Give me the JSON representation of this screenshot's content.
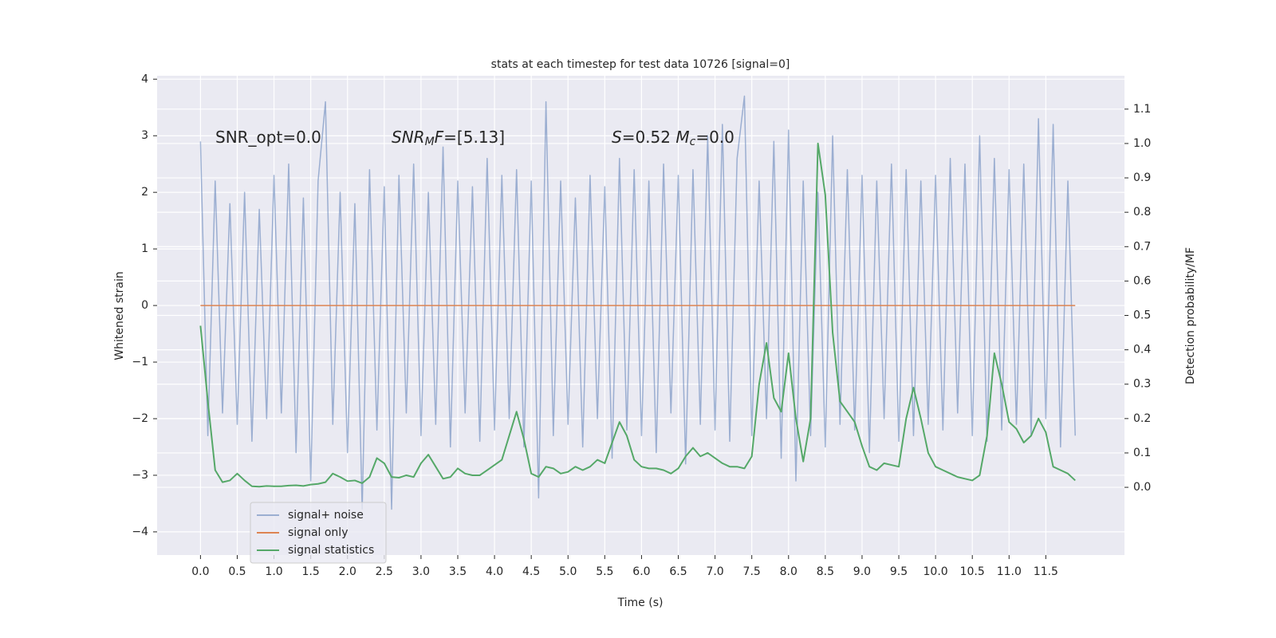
{
  "chart_data": {
    "type": "line",
    "title": "stats at each timestep for test data 10726 [signal=0]",
    "xlabel": "Time (s)",
    "ylabel": "Whitened strain",
    "y2label": "Detection probability/MF",
    "annotations": [
      [
        {
          "text": "SNR_opt=0.0"
        }
      ],
      [
        {
          "text": "SNR",
          "italic": true
        },
        {
          "text": "M",
          "italic": true,
          "sub": true
        },
        {
          "text": "F",
          "italic": true
        },
        {
          "text": "=[5.13]"
        }
      ],
      [
        {
          "text": "S",
          "italic": true
        },
        {
          "text": "=0.52   "
        },
        {
          "text": "M",
          "italic": true
        },
        {
          "text": "c",
          "italic": true,
          "sub": true
        },
        {
          "text": "=0.0"
        }
      ]
    ],
    "xlim": [
      -0.59,
      12.57
    ],
    "ylim": [
      -4.41,
      4.06
    ],
    "y2lim": [
      -0.197,
      1.197
    ],
    "xticks": [
      {
        "value": 0,
        "label": "0.0"
      },
      0.5,
      {
        "value": 1,
        "label": "1.0"
      },
      1.5,
      {
        "value": 2,
        "label": "2.0"
      },
      2.5,
      {
        "value": 3,
        "label": "3.0"
      },
      3.5,
      {
        "value": 4,
        "label": "4.0"
      },
      4.5,
      {
        "value": 5,
        "label": "5.0"
      },
      5.5,
      {
        "value": 6,
        "label": "6.0"
      },
      6.5,
      {
        "value": 7,
        "label": "7.0"
      },
      7.5,
      {
        "value": 8,
        "label": "8.0"
      },
      8.5,
      {
        "value": 9,
        "label": "9.0"
      },
      9.5,
      {
        "value": 10,
        "label": "10.0"
      },
      10.5,
      {
        "value": 11,
        "label": "11.0"
      },
      11.5
    ],
    "yticks": [
      {
        "value": -4,
        "label": "−4"
      },
      {
        "value": -3,
        "label": "−3"
      },
      {
        "value": -2,
        "label": "−2"
      },
      {
        "value": -1,
        "label": "−1"
      },
      0,
      1,
      2,
      3,
      4
    ],
    "y2ticks": [
      {
        "value": 0,
        "label": "0.0"
      },
      0.1,
      0.2,
      0.3,
      0.4,
      0.5,
      0.6,
      0.7,
      0.8,
      0.9,
      {
        "value": 1,
        "label": "1.0"
      },
      1.1
    ],
    "grid": true,
    "legend": "lower left",
    "x": [
      0.0,
      0.1,
      0.2,
      0.3,
      0.4,
      0.5,
      0.6,
      0.7,
      0.8,
      0.9,
      1.0,
      1.1,
      1.2,
      1.3,
      1.4,
      1.5,
      1.6,
      1.7,
      1.8,
      1.9,
      2.0,
      2.1,
      2.2,
      2.3,
      2.4,
      2.5,
      2.6,
      2.7,
      2.8,
      2.9,
      3.0,
      3.1,
      3.2,
      3.3,
      3.4,
      3.5,
      3.6,
      3.7,
      3.8,
      3.9,
      4.0,
      4.1,
      4.2,
      4.3,
      4.4,
      4.5,
      4.6,
      4.7,
      4.8,
      4.9,
      5.0,
      5.1,
      5.2,
      5.3,
      5.4,
      5.5,
      5.6,
      5.7,
      5.8,
      5.9,
      6.0,
      6.1,
      6.2,
      6.3,
      6.4,
      6.5,
      6.6,
      6.7,
      6.8,
      6.9,
      7.0,
      7.1,
      7.2,
      7.3,
      7.4,
      7.5,
      7.6,
      7.7,
      7.8,
      7.9,
      8.0,
      8.1,
      8.2,
      8.3,
      8.4,
      8.5,
      8.6,
      8.7,
      8.8,
      8.9,
      9.0,
      9.1,
      9.2,
      9.3,
      9.4,
      9.5,
      9.6,
      9.7,
      9.8,
      9.9,
      10.0,
      10.1,
      10.2,
      10.3,
      10.4,
      10.5,
      10.6,
      10.7,
      10.8,
      10.9,
      11.0,
      11.1,
      11.2,
      11.3,
      11.4,
      11.5,
      11.6,
      11.7,
      11.8,
      11.9
    ],
    "series": [
      {
        "name": "signal+ noise",
        "color": "#4c72b0",
        "opacity": 0.5,
        "axis": "y",
        "values": [
          2.9,
          -2.3,
          2.2,
          -1.9,
          1.8,
          -2.1,
          2.0,
          -2.4,
          1.7,
          -2.0,
          2.3,
          -1.9,
          2.5,
          -2.6,
          1.9,
          -3.1,
          2.2,
          3.6,
          -2.1,
          2.0,
          -2.6,
          1.8,
          -3.6,
          2.4,
          -2.2,
          2.1,
          -3.6,
          2.3,
          -1.9,
          2.5,
          -2.3,
          2.0,
          -2.1,
          2.8,
          -2.5,
          2.2,
          -1.9,
          2.1,
          -2.4,
          2.6,
          -2.2,
          2.3,
          -2.0,
          2.4,
          -2.5,
          2.2,
          -3.4,
          3.6,
          -2.3,
          2.2,
          -2.1,
          1.9,
          -2.5,
          2.3,
          -2.0,
          2.1,
          -2.7,
          2.6,
          -2.2,
          2.4,
          -2.3,
          2.2,
          -2.6,
          2.5,
          -1.9,
          2.3,
          -2.8,
          2.4,
          -2.1,
          3.0,
          -2.2,
          3.2,
          -2.4,
          2.6,
          3.7,
          -2.3,
          2.2,
          -2.0,
          2.9,
          -2.7,
          3.1,
          -3.1,
          2.2,
          -2.3,
          2.0,
          -2.5,
          3.0,
          -2.1,
          2.4,
          -2.2,
          2.3,
          -2.6,
          2.2,
          -2.0,
          2.5,
          -2.4,
          2.4,
          -2.3,
          2.2,
          -2.1,
          2.3,
          -2.2,
          2.6,
          -1.9,
          2.5,
          -2.3,
          3.0,
          -2.4,
          2.6,
          -2.2,
          2.4,
          -2.1,
          2.5,
          -2.3,
          3.3,
          -2.0,
          3.2,
          -2.5,
          2.2,
          -2.3
        ]
      },
      {
        "name": "signal only",
        "color": "#dd8452",
        "opacity": 1,
        "axis": "y",
        "values": [
          0,
          0,
          0,
          0,
          0,
          0,
          0,
          0,
          0,
          0,
          0,
          0,
          0,
          0,
          0,
          0,
          0,
          0,
          0,
          0,
          0,
          0,
          0,
          0,
          0,
          0,
          0,
          0,
          0,
          0,
          0,
          0,
          0,
          0,
          0,
          0,
          0,
          0,
          0,
          0,
          0,
          0,
          0,
          0,
          0,
          0,
          0,
          0,
          0,
          0,
          0,
          0,
          0,
          0,
          0,
          0,
          0,
          0,
          0,
          0,
          0,
          0,
          0,
          0,
          0,
          0,
          0,
          0,
          0,
          0,
          0,
          0,
          0,
          0,
          0,
          0,
          0,
          0,
          0,
          0,
          0,
          0,
          0,
          0,
          0,
          0,
          0,
          0,
          0,
          0,
          0,
          0,
          0,
          0,
          0,
          0,
          0,
          0,
          0,
          0,
          0,
          0,
          0,
          0,
          0,
          0,
          0,
          0,
          0,
          0,
          0,
          0,
          0,
          0,
          0,
          0,
          0,
          0,
          0,
          0
        ]
      },
      {
        "name": "signal statistics",
        "color": "#55a868",
        "opacity": 1,
        "axis": "y2",
        "values": [
          0.47,
          0.25,
          0.05,
          0.015,
          0.02,
          0.04,
          0.02,
          0.003,
          0.002,
          0.004,
          0.003,
          0.003,
          0.005,
          0.006,
          0.004,
          0.008,
          0.01,
          0.015,
          0.04,
          0.03,
          0.018,
          0.02,
          0.012,
          0.03,
          0.085,
          0.07,
          0.03,
          0.028,
          0.035,
          0.03,
          0.07,
          0.095,
          0.06,
          0.025,
          0.03,
          0.055,
          0.04,
          0.035,
          0.035,
          0.05,
          0.065,
          0.08,
          0.15,
          0.22,
          0.14,
          0.04,
          0.03,
          0.06,
          0.055,
          0.04,
          0.045,
          0.06,
          0.05,
          0.06,
          0.08,
          0.07,
          0.13,
          0.19,
          0.15,
          0.08,
          0.06,
          0.055,
          0.055,
          0.05,
          0.04,
          0.055,
          0.09,
          0.115,
          0.09,
          0.1,
          0.085,
          0.07,
          0.06,
          0.06,
          0.055,
          0.09,
          0.3,
          0.42,
          0.26,
          0.22,
          0.39,
          0.2,
          0.075,
          0.2,
          1.0,
          0.85,
          0.45,
          0.25,
          0.22,
          0.19,
          0.12,
          0.06,
          0.05,
          0.07,
          0.065,
          0.06,
          0.2,
          0.29,
          0.2,
          0.1,
          0.06,
          0.05,
          0.04,
          0.03,
          0.025,
          0.02,
          0.035,
          0.15,
          0.39,
          0.3,
          0.19,
          0.17,
          0.13,
          0.15,
          0.2,
          0.16,
          0.06,
          0.05,
          0.04,
          0.02
        ]
      }
    ]
  }
}
